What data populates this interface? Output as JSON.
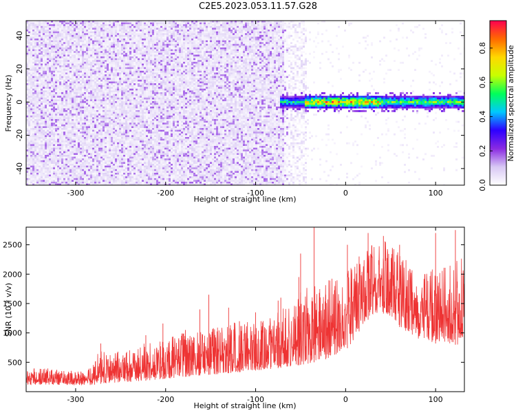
{
  "figure_title": "C2E5.2023.053.11.57.G28",
  "chart_data": [
    {
      "type": "heatmap",
      "xlabel": "Height of straight line (km)",
      "ylabel": "Frequency (Hz)",
      "xlim": [
        -355,
        132
      ],
      "ylim": [
        -50,
        49
      ],
      "xticks": [
        -300,
        -200,
        -100,
        0,
        100
      ],
      "yticks": [
        -40,
        -20,
        0,
        20,
        40
      ],
      "colorbar": {
        "label": "Normalized spectral amplitude",
        "range": [
          0,
          0.96
        ],
        "ticks": [
          "0.0",
          "0.2",
          "0.4",
          "0.6",
          "0.8"
        ],
        "tick_values": [
          0,
          0.2,
          0.4,
          0.6,
          0.8
        ],
        "colormap": [
          "#ffffff",
          "#d8c8f4",
          "#8a2be2",
          "#2d00ff",
          "#00c8ff",
          "#00ff5a",
          "#c8ff00",
          "#ffd800",
          "#ff6a00",
          "#ff0050"
        ]
      },
      "regions": [
        {
          "x_range": [
            -355,
            -63
          ],
          "freq_range": [
            -50,
            49
          ],
          "amplitude": "0.05-0.20 broadband noise"
        },
        {
          "x_range": [
            -63,
            -44
          ],
          "freq_range": [
            -50,
            49
          ],
          "amplitude": "0.02-0.08 sparse"
        },
        {
          "x_range": [
            -70,
            132
          ],
          "freq_center": 0,
          "freq_halfwidth": 3,
          "amplitude": "0.5-0.95 narrow carrier line"
        }
      ]
    },
    {
      "type": "line",
      "xlabel": "Height of straight line (km)",
      "ylabel": "SNR (10 * v/v)",
      "xlim": [
        -355,
        132
      ],
      "ylim": [
        0,
        2800
      ],
      "xticks": [
        -300,
        -200,
        -100,
        0,
        100
      ],
      "yticks": [
        500,
        1000,
        1500,
        2000,
        2500
      ],
      "series": [
        {
          "color": "#ee3333",
          "envelope_x": [
            -355,
            -330,
            -300,
            -282,
            -275,
            -260,
            -240,
            -220,
            -200,
            -180,
            -160,
            -140,
            -120,
            -100,
            -80,
            -60,
            -40,
            -20,
            0,
            10,
            20,
            30,
            40,
            50,
            60,
            70,
            80,
            90,
            100,
            110,
            120,
            132
          ],
          "envelope_min": [
            120,
            120,
            110,
            110,
            130,
            150,
            170,
            190,
            220,
            250,
            280,
            300,
            330,
            360,
            390,
            430,
            480,
            560,
            700,
            900,
            1150,
            1300,
            1350,
            1250,
            1100,
            1000,
            900,
            850,
            820,
            850,
            800,
            800
          ],
          "envelope_max": [
            400,
            400,
            350,
            420,
            700,
            650,
            750,
            850,
            900,
            1000,
            1050,
            1100,
            1200,
            1200,
            1300,
            1600,
            1800,
            1900,
            2050,
            2200,
            2450,
            2550,
            2600,
            2500,
            2350,
            2200,
            2100,
            2050,
            2100,
            2200,
            2200,
            2300
          ],
          "peaks": [
            [
              -272,
              820
            ],
            [
              -222,
              960
            ],
            [
              -203,
              1160
            ],
            [
              -178,
              1050
            ],
            [
              -162,
              1400
            ],
            [
              -152,
              1650
            ],
            [
              -130,
              1430
            ],
            [
              -118,
              1200
            ],
            [
              -100,
              1350
            ],
            [
              -94,
              1200
            ],
            [
              -75,
              1550
            ],
            [
              -72,
              1600
            ],
            [
              -52,
              1950
            ],
            [
              -50,
              2350
            ],
            [
              -35,
              2800
            ],
            [
              -22,
              1650
            ],
            [
              2,
              2500
            ],
            [
              15,
              2300
            ],
            [
              25,
              2700
            ],
            [
              42,
              2650
            ],
            [
              60,
              2500
            ],
            [
              100,
              2700
            ],
            [
              122,
              2750
            ]
          ]
        }
      ]
    }
  ]
}
